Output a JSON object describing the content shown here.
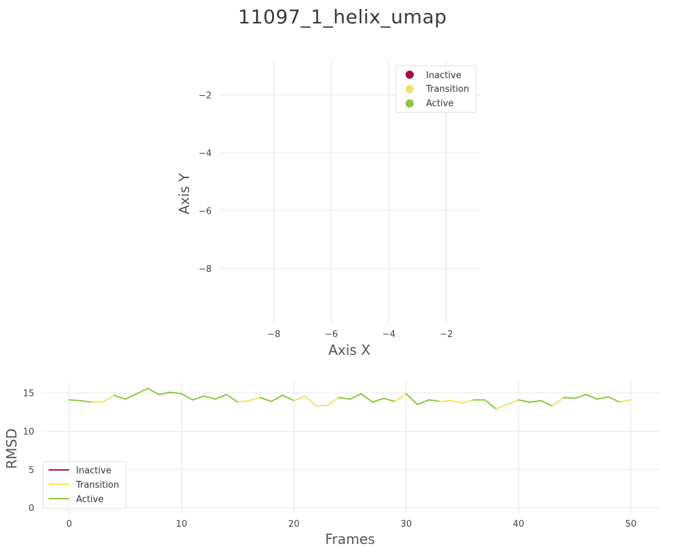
{
  "title": "11097_1_helix_umap",
  "colors": {
    "inactive": "#a0123f",
    "transition": "#f0e268",
    "active": "#8cc63f"
  },
  "chart_data": [
    {
      "type": "scatter",
      "xlabel": "Axis X",
      "ylabel": "Axis Y",
      "xlim": [
        -9.9,
        -0.8
      ],
      "ylim": [
        -9.9,
        -0.8
      ],
      "xticks": [
        -8,
        -6,
        -4,
        -2
      ],
      "yticks": [
        -2,
        -4,
        -6,
        -8
      ],
      "xtick_labels": [
        "−8",
        "−6",
        "−4",
        "−2"
      ],
      "ytick_labels": [
        "−2",
        "−4",
        "−6",
        "−8"
      ],
      "grid": true,
      "legend_position": "top-right",
      "legend": [
        "Inactive",
        "Transition",
        "Active"
      ],
      "points": []
    },
    {
      "type": "line",
      "xlabel": "Frames",
      "ylabel": "RMSD",
      "xlim": [
        -2.5,
        52.5
      ],
      "ylim": [
        -0.8,
        16.5
      ],
      "xticks": [
        0,
        10,
        20,
        30,
        40,
        50
      ],
      "yticks": [
        0,
        5,
        10,
        15
      ],
      "grid": true,
      "legend_position": "bottom-left",
      "legend": [
        "Inactive",
        "Transition",
        "Active"
      ],
      "x": [
        0,
        1,
        2,
        3,
        4,
        5,
        6,
        7,
        8,
        9,
        10,
        11,
        12,
        13,
        14,
        15,
        16,
        17,
        18,
        19,
        20,
        21,
        22,
        23,
        24,
        25,
        26,
        27,
        28,
        29,
        30,
        31,
        32,
        33,
        34,
        35,
        36,
        37,
        38,
        39,
        40,
        41,
        42,
        43,
        44,
        45,
        46,
        47,
        48,
        49,
        50
      ],
      "y": [
        14.1,
        14.0,
        13.8,
        13.8,
        14.7,
        14.2,
        14.9,
        15.6,
        14.8,
        15.1,
        14.9,
        14.1,
        14.6,
        14.2,
        14.8,
        13.8,
        14.0,
        14.4,
        13.9,
        14.7,
        14.0,
        14.6,
        13.3,
        13.4,
        14.4,
        14.2,
        14.9,
        13.8,
        14.3,
        13.9,
        14.9,
        13.5,
        14.1,
        13.9,
        14.0,
        13.7,
        14.1,
        14.1,
        12.9,
        13.5,
        14.1,
        13.8,
        14.0,
        13.3,
        14.4,
        14.3,
        14.8,
        14.2,
        14.5,
        13.8,
        14.1
      ],
      "state": [
        "A",
        "A",
        "T",
        "T",
        "A",
        "A",
        "A",
        "A",
        "A",
        "A",
        "A",
        "A",
        "A",
        "A",
        "A",
        "T",
        "T",
        "A",
        "A",
        "A",
        "T",
        "T",
        "T",
        "T",
        "A",
        "A",
        "A",
        "A",
        "A",
        "T",
        "A",
        "A",
        "A",
        "T",
        "T",
        "T",
        "A",
        "A",
        "T",
        "T",
        "A",
        "A",
        "A",
        "T",
        "A",
        "A",
        "A",
        "A",
        "A",
        "T",
        "T"
      ]
    }
  ]
}
